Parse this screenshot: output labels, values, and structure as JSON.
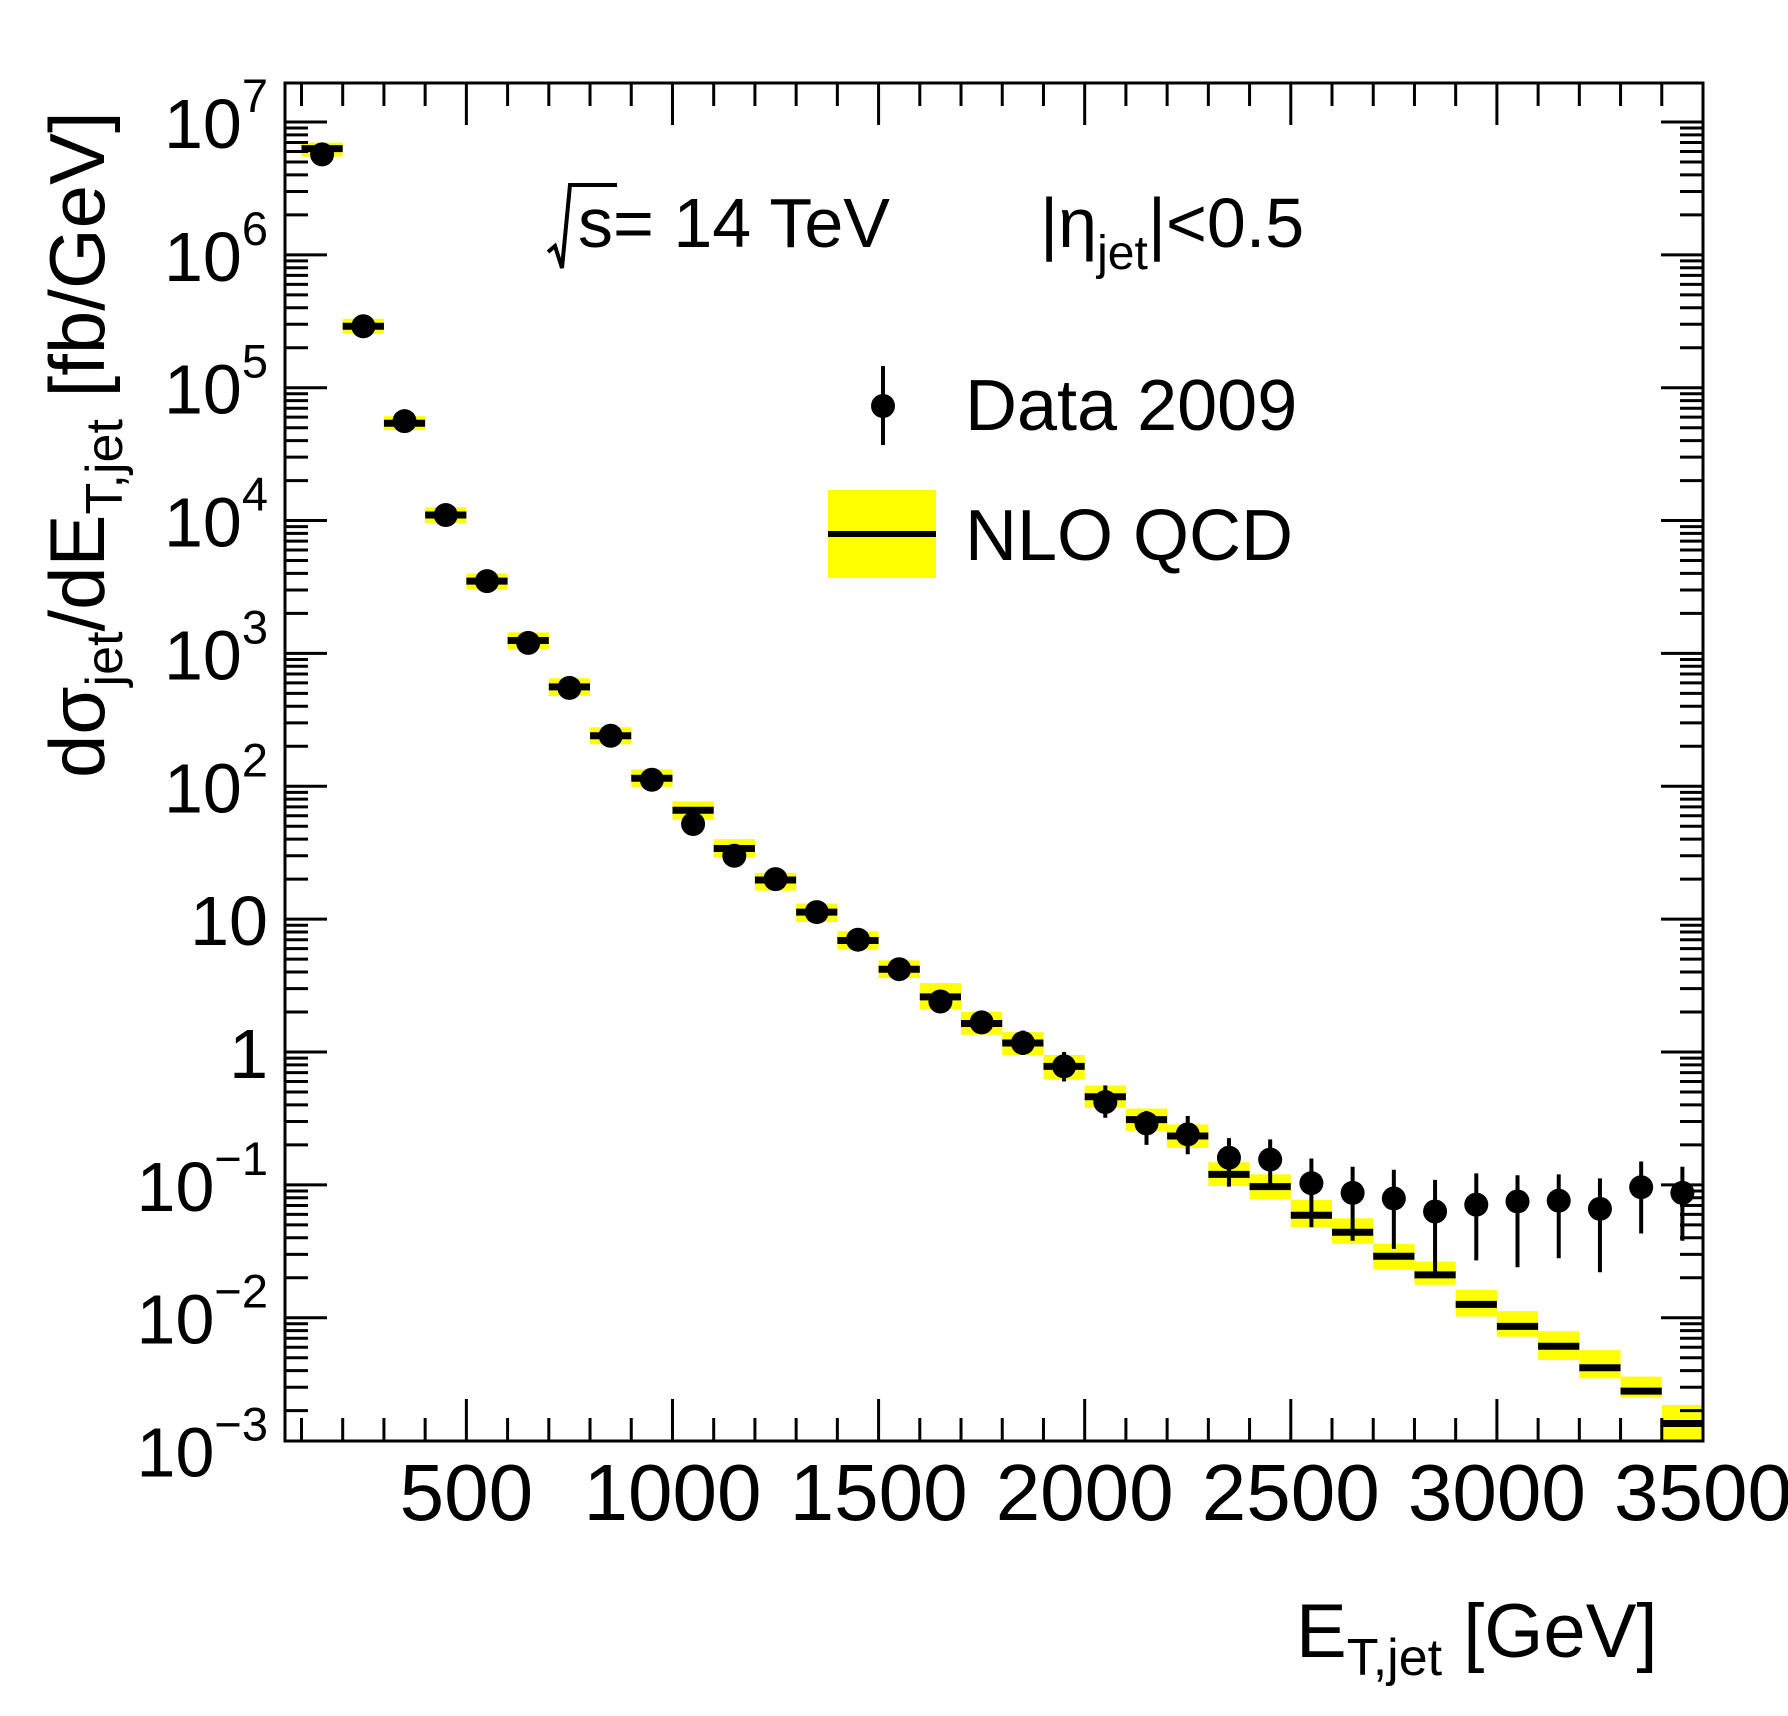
{
  "page": {
    "background": "#ffffff",
    "frame_color": "#000000"
  },
  "annotations": {
    "sqrt_s": {
      "radical_symbol": "sqrt-overbar",
      "text": "s= 14 TeV"
    },
    "eta_cut": {
      "open": "|η",
      "sub": "jet",
      "close": "|<0.5"
    }
  },
  "legend": {
    "data_label": "Data 2009",
    "theory_label": "NLO QCD",
    "data_marker": "black-circle-with-error-bar",
    "theory_marker": "yellow-band-with-black-line"
  },
  "axes": {
    "x_title": {
      "main": "E",
      "sub": "T,jet",
      "unit": " [GeV]"
    },
    "y_title": {
      "pre": "dσ",
      "pre_sub": "jet",
      "mid": "/dE",
      "mid_sub": "T,jet",
      "unit": " [fb/GeV]"
    },
    "x_ticks": [
      500,
      1000,
      1500,
      2000,
      2500,
      3000,
      3500
    ],
    "x_minor_step": 100,
    "y_tick_exponents": [
      7,
      6,
      5,
      4,
      3,
      2,
      1,
      0,
      -1,
      -2,
      -3
    ]
  },
  "chart_data": {
    "type": "scatter",
    "title": "",
    "xlabel": "E_T,jet [GeV]",
    "ylabel": "dsigma_jet/dE_T,jet [fb/GeV]",
    "xlim": [
      60,
      3500
    ],
    "ylim": [
      0.00115,
      19500000.0
    ],
    "x_log": false,
    "y_log": true,
    "bin_half_width_gev": 50,
    "series": [
      {
        "name": "Data 2009",
        "type": "points_with_errors",
        "color": "#000000",
        "x": [
          150,
          250,
          350,
          450,
          550,
          650,
          750,
          850,
          950,
          1050,
          1150,
          1250,
          1350,
          1450,
          1550,
          1650,
          1750,
          1850,
          1950,
          2050,
          2150,
          2250,
          2350,
          2450,
          2550,
          2650,
          2750,
          2850,
          2950,
          3050,
          3150,
          3250,
          3350,
          3450
        ],
        "y": [
          5700000.0,
          290000.0,
          56000.0,
          11000.0,
          3500.0,
          1200.0,
          550,
          240,
          112,
          52,
          30,
          20,
          11.3,
          7.0,
          4.2,
          2.4,
          1.67,
          1.17,
          0.78,
          0.42,
          0.29,
          0.24,
          0.16,
          0.155,
          0.103,
          0.087,
          0.079,
          0.063,
          0.071,
          0.075,
          0.076,
          0.066,
          0.096,
          0.087
        ],
        "y_err_low": [
          5700000.0,
          290000.0,
          56000.0,
          11000.0,
          3500.0,
          1200.0,
          550,
          240,
          112,
          52,
          30,
          20,
          11.3,
          7.0,
          4.2,
          2.4,
          1.67,
          0.95,
          0.6,
          0.32,
          0.2,
          0.17,
          0.097,
          0.096,
          0.048,
          0.038,
          0.033,
          0.021,
          0.027,
          0.024,
          0.028,
          0.022,
          0.043,
          0.038
        ],
        "y_err_high": [
          5700000.0,
          290000.0,
          56000.0,
          11000.0,
          3500.0,
          1200.0,
          550,
          240,
          112,
          52,
          30,
          20,
          11.3,
          7.0,
          4.2,
          2.4,
          1.67,
          1.45,
          1.0,
          0.56,
          0.36,
          0.33,
          0.225,
          0.22,
          0.158,
          0.137,
          0.13,
          0.109,
          0.122,
          0.118,
          0.12,
          0.112,
          0.15,
          0.137
        ]
      },
      {
        "name": "NLO QCD",
        "type": "band_with_centerline",
        "band_color": "#ffff00",
        "line_color": "#000000",
        "x": [
          150,
          250,
          350,
          450,
          550,
          650,
          750,
          850,
          950,
          1050,
          1150,
          1250,
          1350,
          1450,
          1550,
          1650,
          1750,
          1850,
          1950,
          2050,
          2150,
          2250,
          2350,
          2450,
          2550,
          2650,
          2750,
          2850,
          2950,
          3050,
          3150,
          3250,
          3350,
          3450
        ],
        "y": [
          6300000.0,
          290000.0,
          54000.0,
          11000.0,
          3500.0,
          1250.0,
          560,
          240,
          115,
          66,
          34,
          19.7,
          11.3,
          6.9,
          4.2,
          2.6,
          1.64,
          1.17,
          0.78,
          0.46,
          0.31,
          0.233,
          0.12,
          0.097,
          0.059,
          0.044,
          0.029,
          0.021,
          0.0126,
          0.0086,
          0.0061,
          0.0042,
          0.0028,
          0.0016
        ],
        "y_low": [
          5500000.0,
          255000.0,
          48000.0,
          9600.0,
          3050.0,
          1080.0,
          480,
          207,
          99,
          56,
          29,
          16.4,
          9.5,
          5.9,
          3.6,
          2.1,
          1.35,
          0.95,
          0.62,
          0.38,
          0.255,
          0.19,
          0.098,
          0.078,
          0.048,
          0.036,
          0.023,
          0.0177,
          0.0102,
          0.0072,
          0.0048,
          0.0035,
          0.0025,
          0.0011
        ],
        "y_high": [
          7000000.0,
          330000.0,
          61000.0,
          12600.0,
          4000.0,
          1440.0,
          650,
          278,
          134,
          77,
          40,
          22.3,
          13.1,
          8.1,
          4.9,
          3.3,
          2.0,
          1.41,
          0.95,
          0.56,
          0.375,
          0.285,
          0.148,
          0.12,
          0.077,
          0.056,
          0.036,
          0.0265,
          0.0162,
          0.0112,
          0.0079,
          0.0057,
          0.0036,
          0.0022
        ]
      }
    ]
  }
}
